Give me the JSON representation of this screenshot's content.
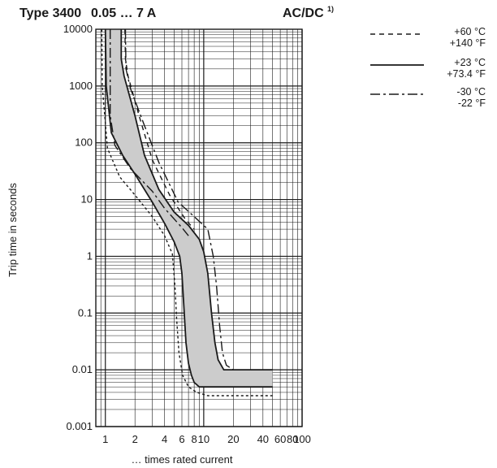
{
  "chart_data": {
    "type": "line",
    "title": "Type 3400",
    "title_range": "0.05 … 7 A",
    "title_current": "AC/DC",
    "title_note": "1)",
    "xlabel": "… times rated current",
    "ylabel": "Trip time in seconds",
    "x_scale": "log",
    "y_scale": "log",
    "xlim": [
      0.8,
      100
    ],
    "ylim": [
      0.001,
      10000
    ],
    "grid": true,
    "legend_position": "right",
    "x_tick_labels": [
      "1",
      "2",
      "4",
      "6",
      "8",
      "10",
      "20",
      "40",
      "60",
      "80",
      "100"
    ],
    "x_ticks": [
      1,
      2,
      4,
      6,
      8,
      10,
      20,
      40,
      60,
      80,
      100
    ],
    "y_tick_labels": [
      "10000",
      "1000",
      "100",
      "10",
      "1",
      "0.1",
      "0.01",
      "0.001"
    ],
    "y_ticks": [
      10000,
      1000,
      100,
      10,
      1,
      0.1,
      0.01,
      0.001
    ],
    "colors": {
      "band_fill": "#cccccc",
      "line": "#1a1a1a",
      "grid": "#1a1a1a"
    },
    "band": {
      "left_boundary": [
        [
          1.0,
          10000
        ],
        [
          1.02,
          1000
        ],
        [
          1.15,
          150
        ],
        [
          1.5,
          60
        ],
        [
          2,
          28
        ],
        [
          3,
          9
        ],
        [
          4,
          3.8
        ],
        [
          5,
          1.8
        ],
        [
          5.7,
          1.0
        ],
        [
          6,
          0.5
        ],
        [
          6.3,
          0.12
        ],
        [
          6.6,
          0.03
        ],
        [
          7,
          0.013
        ],
        [
          7.5,
          0.008
        ],
        [
          8,
          0.006
        ],
        [
          9,
          0.005
        ],
        [
          50,
          0.005
        ]
      ],
      "right_boundary": [
        [
          1.45,
          10000
        ],
        [
          1.45,
          3000
        ],
        [
          1.55,
          1500
        ],
        [
          2,
          300
        ],
        [
          2.5,
          60
        ],
        [
          3.5,
          15
        ],
        [
          5,
          6
        ],
        [
          7,
          3.5
        ],
        [
          9,
          2.0
        ],
        [
          10,
          1.2
        ],
        [
          11,
          0.5
        ],
        [
          12,
          0.1
        ],
        [
          13,
          0.03
        ],
        [
          14,
          0.015
        ],
        [
          16,
          0.01
        ],
        [
          50,
          0.01
        ]
      ]
    },
    "series": [
      {
        "name": "+23 °C",
        "name_alt": "+73.4 °F",
        "style": "solid",
        "curves": [
          [
            [
              1.0,
              10000
            ],
            [
              1.02,
              1000
            ],
            [
              1.15,
              150
            ],
            [
              1.5,
              60
            ],
            [
              2,
              28
            ],
            [
              3,
              9
            ],
            [
              4,
              3.8
            ],
            [
              5,
              1.8
            ],
            [
              5.7,
              1.0
            ],
            [
              6,
              0.5
            ],
            [
              6.3,
              0.12
            ],
            [
              6.6,
              0.03
            ],
            [
              7,
              0.013
            ],
            [
              7.5,
              0.008
            ],
            [
              8,
              0.006
            ],
            [
              9,
              0.005
            ],
            [
              50,
              0.005
            ]
          ],
          [
            [
              1.45,
              10000
            ],
            [
              1.45,
              3000
            ],
            [
              1.55,
              1500
            ],
            [
              2,
              300
            ],
            [
              2.5,
              60
            ],
            [
              3.5,
              15
            ],
            [
              5,
              6
            ],
            [
              7,
              3.5
            ],
            [
              9,
              2.0
            ],
            [
              10,
              1.2
            ],
            [
              11,
              0.5
            ],
            [
              12,
              0.1
            ],
            [
              13,
              0.03
            ],
            [
              14,
              0.015
            ],
            [
              16,
              0.01
            ],
            [
              50,
              0.01
            ]
          ]
        ]
      },
      {
        "name": "+60 °C",
        "name_alt": "+140 °F",
        "style": "dashed",
        "curves": [
          [
            [
              0.92,
              10000
            ],
            [
              0.93,
              1000
            ],
            [
              1.05,
              80
            ],
            [
              1.4,
              25
            ],
            [
              2,
              12
            ],
            [
              3,
              5
            ],
            [
              4,
              2.3
            ],
            [
              4.8,
              1.1
            ],
            [
              5.1,
              0.3
            ],
            [
              5.3,
              0.08
            ],
            [
              5.6,
              0.02
            ],
            [
              6.1,
              0.008
            ],
            [
              7,
              0.005
            ],
            [
              8.5,
              0.004
            ],
            [
              11,
              0.0035
            ],
            [
              50,
              0.0035
            ]
          ],
          [
            [
              1.58,
              10000
            ],
            [
              1.6,
              3000
            ],
            [
              1.7,
              1500
            ],
            [
              2.2,
              300
            ],
            [
              3,
              50
            ],
            [
              4.5,
              12
            ],
            [
              6.5,
              4.5
            ],
            [
              8,
              3.0
            ]
          ]
        ]
      },
      {
        "name": "-30 °C",
        "name_alt": "-22 °F",
        "style": "dashdot",
        "curves": [
          [
            [
              1.12,
              10000
            ],
            [
              1.12,
              300
            ],
            [
              1.25,
              90
            ],
            [
              1.8,
              35
            ],
            [
              3,
              14
            ],
            [
              4,
              7
            ],
            [
              6,
              3.2
            ],
            [
              7,
              2.3
            ]
          ],
          [
            [
              1.6,
              10000
            ],
            [
              1.62,
              2000
            ],
            [
              1.8,
              900
            ],
            [
              2.5,
              200
            ],
            [
              3.5,
              45
            ],
            [
              5.5,
              9
            ],
            [
              8,
              5
            ],
            [
              11,
              3
            ],
            [
              12.5,
              1.0
            ],
            [
              13.5,
              0.3
            ],
            [
              14.5,
              0.06
            ],
            [
              15.5,
              0.02
            ],
            [
              17,
              0.012
            ],
            [
              20,
              0.01
            ]
          ]
        ]
      }
    ]
  }
}
